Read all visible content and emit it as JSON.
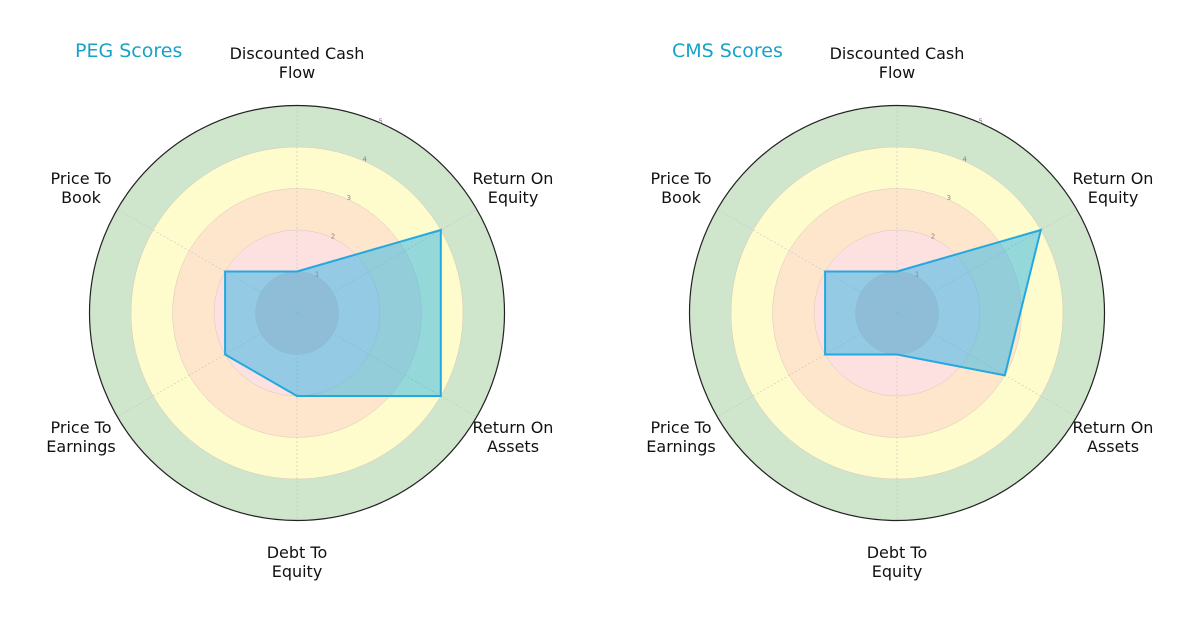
{
  "chart_data": [
    {
      "type": "radar",
      "title": "PEG Scores",
      "categories": [
        "Discounted Cash Flow",
        "Return On Equity",
        "Return On Assets",
        "Debt To Equity",
        "Price To Earnings",
        "Price To Book"
      ],
      "values": [
        1,
        4,
        4,
        2,
        2,
        2
      ],
      "rlim": [
        0,
        5
      ],
      "rticks": [
        1,
        2,
        3,
        4,
        5
      ],
      "band_colors": [
        "#f3c7c7",
        "#fde0e0",
        "#fde6cc",
        "#fefccc",
        "#cfe5cc"
      ],
      "fill_color": "#2bb3e8",
      "line_color": "#23a8e0"
    },
    {
      "type": "radar",
      "title": "CMS Scores",
      "categories": [
        "Discounted Cash Flow",
        "Return On Equity",
        "Return On Assets",
        "Debt To Equity",
        "Price To Earnings",
        "Price To Book"
      ],
      "values": [
        1,
        4,
        3,
        1,
        2,
        2
      ],
      "rlim": [
        0,
        5
      ],
      "rticks": [
        1,
        2,
        3,
        4,
        5
      ],
      "band_colors": [
        "#f3c7c7",
        "#fde0e0",
        "#fde6cc",
        "#fefccc",
        "#cfe5cc"
      ],
      "fill_color": "#2bb3e8",
      "line_color": "#23a8e0"
    }
  ],
  "left": {
    "title": "PEG Scores",
    "labels": [
      "Discounted Cash\nFlow",
      "Return On\nEquity",
      "Return On\nAssets",
      "Debt To\nEquity",
      "Price To\nEarnings",
      "Price To\nBook"
    ]
  },
  "right": {
    "title": "CMS Scores",
    "labels": [
      "Discounted Cash\nFlow",
      "Return On\nEquity",
      "Return On\nAssets",
      "Debt To\nEquity",
      "Price To\nEarnings",
      "Price To\nBook"
    ]
  }
}
